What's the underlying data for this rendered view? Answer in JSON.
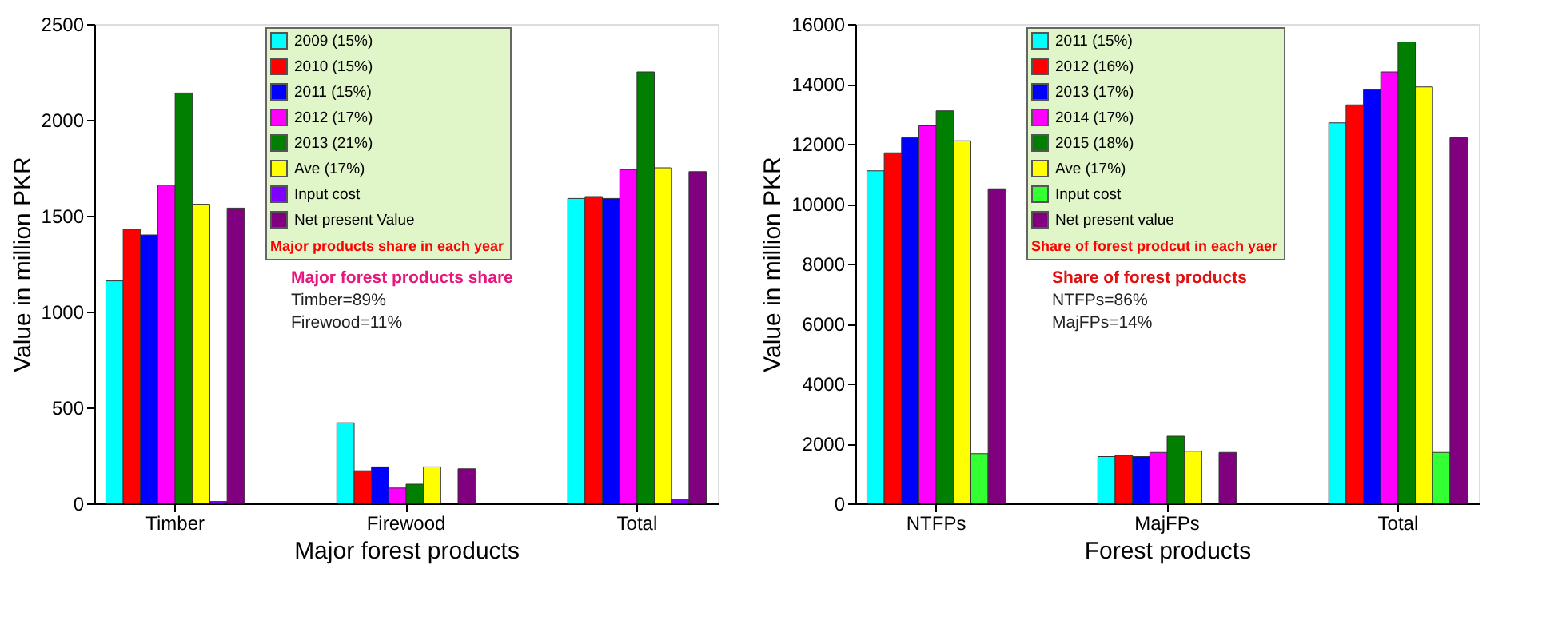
{
  "chart_data": [
    {
      "type": "bar",
      "xlabel": "Major forest products",
      "ylabel": "Value in million PKR",
      "legend_title": "Major products share in each year",
      "legend": "top",
      "categories": [
        "Timber",
        "Firewood",
        "Total"
      ],
      "ylim": [
        0,
        2500
      ],
      "yticks": [
        0,
        500,
        1000,
        1500,
        2000,
        2500
      ],
      "grid": false,
      "annotations": [
        "Major forest products share",
        "Timber=89%",
        "Firewood=11%"
      ],
      "series": [
        {
          "name": "2009 (15%)",
          "color": "#00ffff",
          "values": [
            1160,
            420,
            1590
          ]
        },
        {
          "name": "2010 (15%)",
          "color": "#ff0000",
          "values": [
            1430,
            170,
            1600
          ]
        },
        {
          "name": "2011 (15%)",
          "color": "#0000ff",
          "values": [
            1400,
            190,
            1590
          ]
        },
        {
          "name": "2012 (17%)",
          "color": "#ff00ff",
          "values": [
            1660,
            80,
            1740
          ]
        },
        {
          "name": "2013 (21%)",
          "color": "#007f00",
          "values": [
            2140,
            100,
            2250
          ]
        },
        {
          "name": "Ave (17%)",
          "color": "#ffff00",
          "values": [
            1560,
            190,
            1750
          ]
        },
        {
          "name": "Input cost",
          "color": "#8000ff",
          "values": [
            10,
            null,
            20
          ]
        },
        {
          "name": "Net present Value",
          "color": "#800080",
          "values": [
            1540,
            180,
            1730
          ]
        }
      ]
    },
    {
      "type": "bar",
      "xlabel": "Forest products",
      "ylabel": "Value in million PKR",
      "legend_title": "Share of forest prodcut in each yaer",
      "legend": "top",
      "categories": [
        "NTFPs",
        "MajFPs",
        "Total"
      ],
      "ylim": [
        0,
        16000
      ],
      "yticks": [
        0,
        2000,
        4000,
        6000,
        8000,
        10000,
        12000,
        14000,
        16000
      ],
      "grid": false,
      "annotations": [
        "Share of forest products",
        "NTFPs=86%",
        "MajFPs=14%"
      ],
      "series": [
        {
          "name": "2011 (15%)",
          "color": "#00ffff",
          "values": [
            11100,
            1560,
            12700
          ]
        },
        {
          "name": "2012 (16%)",
          "color": "#ff0000",
          "values": [
            11700,
            1600,
            13300
          ]
        },
        {
          "name": "2013 (17%)",
          "color": "#0000ff",
          "values": [
            12200,
            1560,
            13800
          ]
        },
        {
          "name": "2014 (17%)",
          "color": "#ff00ff",
          "values": [
            12600,
            1700,
            14400
          ]
        },
        {
          "name": "2015 (18%)",
          "color": "#007f00",
          "values": [
            13100,
            2240,
            15400
          ]
        },
        {
          "name": "Ave (17%)",
          "color": "#ffff00",
          "values": [
            12100,
            1740,
            13900
          ]
        },
        {
          "name": "Input cost",
          "color": "#33ff33",
          "values": [
            1660,
            null,
            1700
          ]
        },
        {
          "name": "Net present value",
          "color": "#800080",
          "values": [
            10500,
            1700,
            12200
          ]
        }
      ]
    }
  ]
}
